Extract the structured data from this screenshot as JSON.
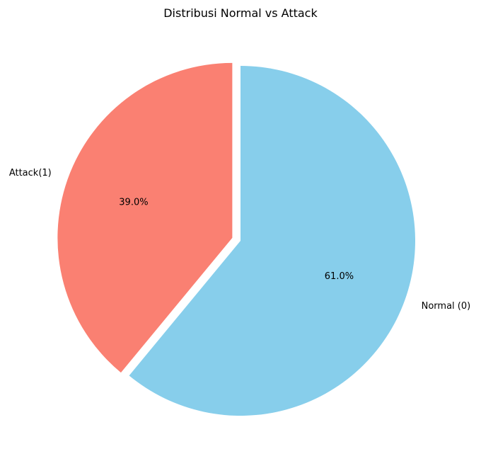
{
  "chart_data": {
    "type": "pie",
    "title": "Distribusi Normal vs Attack",
    "slices": [
      {
        "label": "Normal (0)",
        "value": 61.0,
        "pct_label": "61.0%",
        "color": "#87CEEB",
        "exploded": false
      },
      {
        "label": "Attack(1)",
        "value": 39.0,
        "pct_label": "39.0%",
        "color": "#FA8072",
        "exploded": true
      }
    ],
    "start_angle_deg": 90,
    "direction": "clockwise"
  }
}
